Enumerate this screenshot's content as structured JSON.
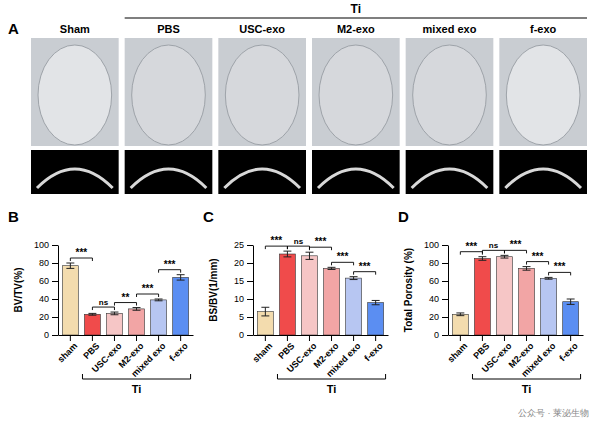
{
  "panel_a": {
    "label": "A",
    "columns": [
      "Sham",
      "PBS",
      "USC-exo",
      "M2-exo",
      "mixed exo",
      "f-exo"
    ],
    "group": {
      "label": "Ti",
      "from": 1,
      "to": 5
    }
  },
  "watermark": "公众号 · 莱泌生物",
  "chart_data": [
    {
      "type": "bar",
      "panel": "B",
      "ylabel": "BV/TV(%)",
      "categories": [
        "sham",
        "PBS",
        "USC-exo",
        "M2-exo",
        "mixed exo",
        "f-exo"
      ],
      "values": [
        77,
        23,
        24,
        29,
        39,
        64
      ],
      "errors": [
        3,
        1,
        1.5,
        1.5,
        1,
        3
      ],
      "colors": [
        "#f3dcae",
        "#f04b4b",
        "#f6c6c6",
        "#f2a5a5",
        "#b7c6f2",
        "#5b8ef2"
      ],
      "ylim": [
        0,
        100
      ],
      "yticks": [
        0,
        20,
        40,
        60,
        80,
        100
      ],
      "annotations": [
        {
          "pair": [
            0,
            1
          ],
          "label": "***"
        },
        {
          "pair": [
            1,
            2
          ],
          "label": "ns"
        },
        {
          "pair": [
            2,
            3
          ],
          "label": "**"
        },
        {
          "pair": [
            3,
            4
          ],
          "label": "***"
        },
        {
          "pair": [
            4,
            5
          ],
          "label": "***"
        }
      ],
      "group": {
        "label": "Ti",
        "from": 1,
        "to": 5
      }
    },
    {
      "type": "bar",
      "panel": "C",
      "ylabel": "BS/BV(1/mm)",
      "categories": [
        "sham",
        "PBS",
        "USC-exo",
        "M2-exo",
        "mixed exo",
        "f-exo"
      ],
      "values": [
        6.5,
        22.5,
        22,
        18.5,
        15.8,
        9
      ],
      "errors": [
        1.2,
        0.8,
        1,
        0.3,
        0.4,
        0.6
      ],
      "colors": [
        "#f3dcae",
        "#f04b4b",
        "#f6c6c6",
        "#f2a5a5",
        "#b7c6f2",
        "#5b8ef2"
      ],
      "ylim": [
        0,
        25
      ],
      "yticks": [
        0,
        5,
        10,
        15,
        20,
        25
      ],
      "annotations": [
        {
          "pair": [
            0,
            1
          ],
          "label": "***"
        },
        {
          "pair": [
            1,
            2
          ],
          "label": "ns"
        },
        {
          "pair": [
            2,
            3
          ],
          "label": "***"
        },
        {
          "pair": [
            3,
            4
          ],
          "label": "***"
        },
        {
          "pair": [
            4,
            5
          ],
          "label": "***"
        }
      ],
      "group": {
        "label": "Ti",
        "from": 1,
        "to": 5
      }
    },
    {
      "type": "bar",
      "panel": "D",
      "ylabel": "Total Porosity (%)",
      "categories": [
        "sham",
        "PBS",
        "USC-exo",
        "M2-exo",
        "mixed exo",
        "f-exo"
      ],
      "values": [
        23,
        85,
        87,
        74,
        63,
        37
      ],
      "errors": [
        1.5,
        2,
        1.5,
        2,
        1,
        3
      ],
      "colors": [
        "#f3dcae",
        "#f04b4b",
        "#f6c6c6",
        "#f2a5a5",
        "#b7c6f2",
        "#5b8ef2"
      ],
      "ylim": [
        0,
        100
      ],
      "yticks": [
        0,
        20,
        40,
        60,
        80,
        100
      ],
      "annotations": [
        {
          "pair": [
            0,
            1
          ],
          "label": "***"
        },
        {
          "pair": [
            1,
            2
          ],
          "label": "ns"
        },
        {
          "pair": [
            2,
            3
          ],
          "label": "***"
        },
        {
          "pair": [
            3,
            4
          ],
          "label": "***"
        },
        {
          "pair": [
            4,
            5
          ],
          "label": "***"
        }
      ],
      "group": {
        "label": "Ti",
        "from": 1,
        "to": 5
      }
    }
  ]
}
